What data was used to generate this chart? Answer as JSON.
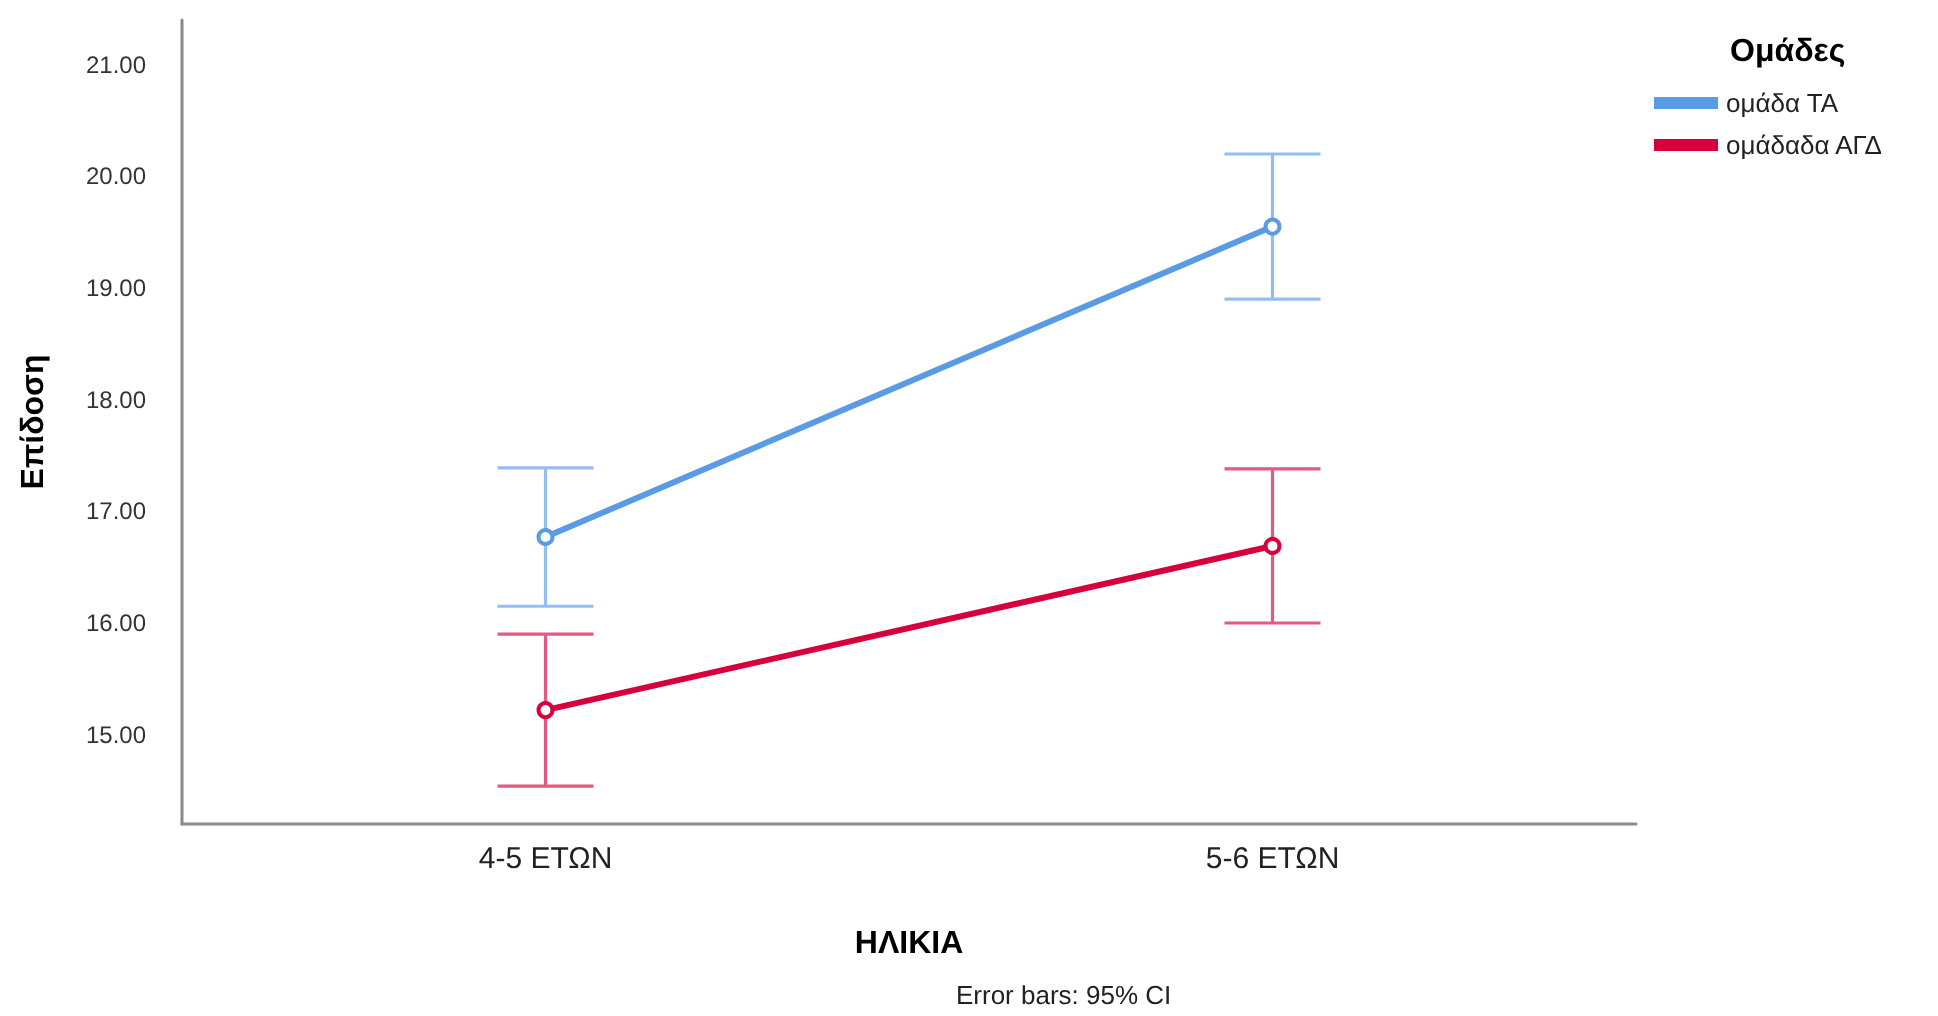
{
  "chart_data": {
    "type": "line",
    "xlabel": "ΗΛΙΚΙΑ",
    "ylabel": "Επίδοση",
    "legend_title": "Ομάδες",
    "annotations": [
      "Error bars: 95% CI"
    ],
    "categories": [
      "4-5 ΕΤΩΝ",
      "5-6 ΕΤΩΝ"
    ],
    "series": [
      {
        "name": "ομάδα ΤΑ",
        "color": "#5b9be6",
        "values": [
          16.77,
          19.55
        ],
        "errors": [
          0.62,
          0.65
        ]
      },
      {
        "name": "ομάδαδα ΑΓΔ",
        "color": "#d5003c",
        "values": [
          15.22,
          16.69
        ],
        "errors": [
          0.68,
          0.69
        ]
      }
    ],
    "ylim": [
      14.2,
      21.4
    ],
    "yticks": [
      {
        "value": 15,
        "label": "15.00"
      },
      {
        "value": 16,
        "label": "16.00"
      },
      {
        "value": 17,
        "label": "17.00"
      },
      {
        "value": 18,
        "label": "18.00"
      },
      {
        "value": 19,
        "label": "19.00"
      },
      {
        "value": 20,
        "label": "20.00"
      },
      {
        "value": 21,
        "label": "21.00"
      }
    ],
    "legend": "top right",
    "marker": "circle",
    "grid": false
  }
}
